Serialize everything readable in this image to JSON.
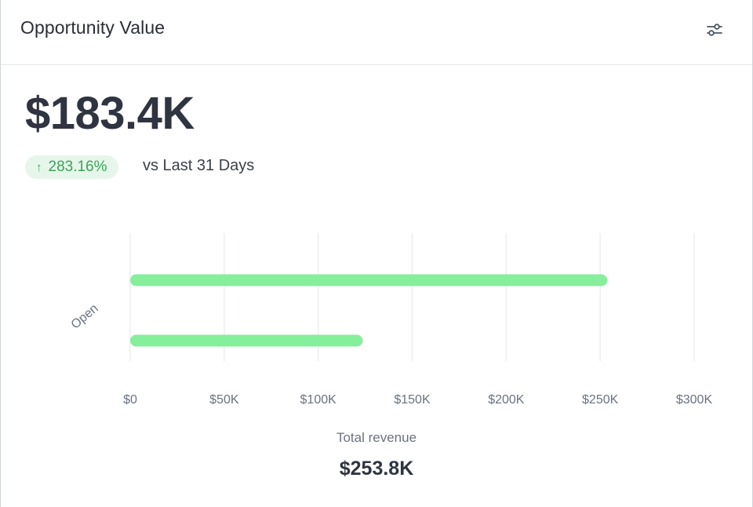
{
  "card": {
    "title": "Opportunity Value",
    "settings_icon": "sliders-icon"
  },
  "summary": {
    "value": "$183.4K",
    "change": "283.16%",
    "change_direction": "up",
    "change_color": "#3aa45a",
    "comparison": "vs Last 31 Days"
  },
  "chart_data": {
    "type": "bar",
    "orientation": "horizontal",
    "categories": [
      "Open"
    ],
    "series": [
      {
        "values": [
          253800
        ],
        "color": "#86ef9c"
      },
      {
        "values": [
          123700
        ],
        "color": "#86ef9c"
      }
    ],
    "xlim": [
      0,
      300000
    ],
    "xticks": [
      0,
      50000,
      100000,
      150000,
      200000,
      250000,
      300000
    ],
    "xtick_labels": [
      "$0",
      "$50K",
      "$100K",
      "$150K",
      "$200K",
      "$250K",
      "$300K"
    ],
    "grid": true
  },
  "total": {
    "label": "Total revenue",
    "value": "$253.8K"
  }
}
